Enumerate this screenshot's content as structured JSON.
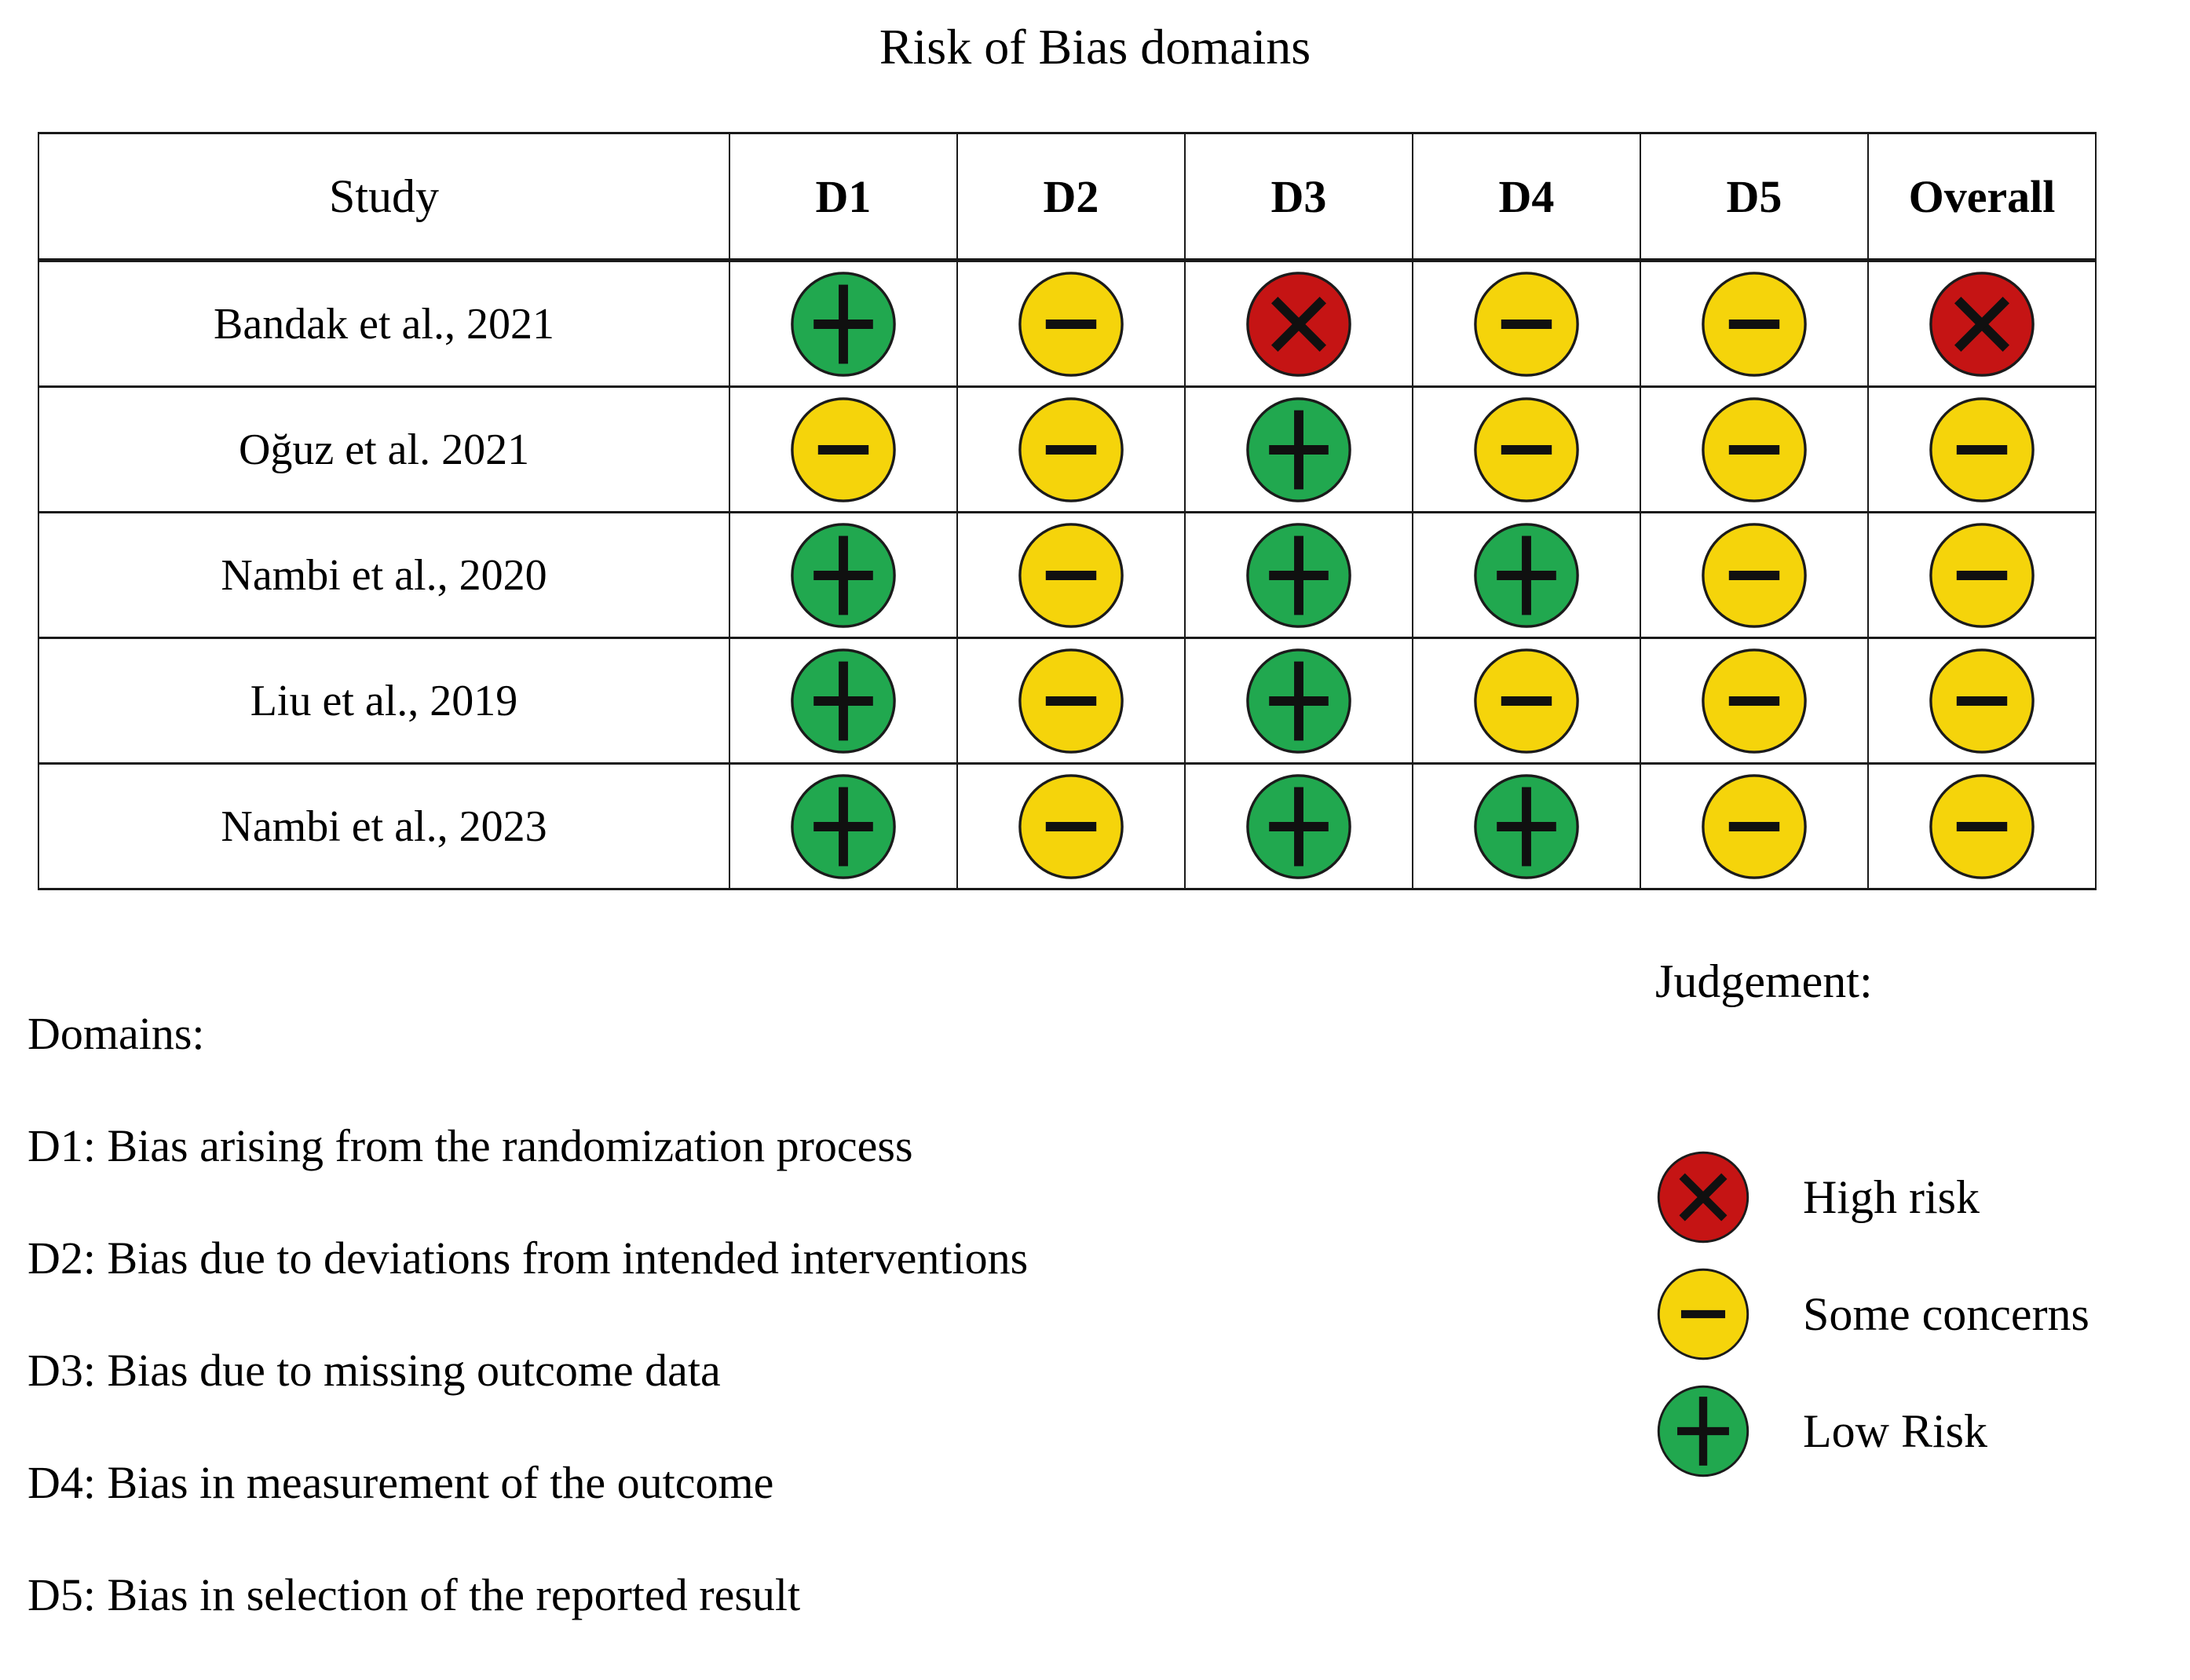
{
  "chart_data": {
    "type": "table",
    "title": "Risk of Bias domains",
    "columns": [
      "Study",
      "D1",
      "D2",
      "D3",
      "D4",
      "D5",
      "Overall"
    ],
    "rows": [
      {
        "study": "Bandak et al., 2021",
        "judgements": [
          "low",
          "some",
          "high",
          "some",
          "some",
          "high"
        ]
      },
      {
        "study": "Oğuz et al. 2021",
        "judgements": [
          "some",
          "some",
          "low",
          "some",
          "some",
          "some"
        ]
      },
      {
        "study": "Nambi et al., 2020",
        "judgements": [
          "low",
          "some",
          "low",
          "low",
          "some",
          "some"
        ]
      },
      {
        "study": "Liu et al., 2019",
        "judgements": [
          "low",
          "some",
          "low",
          "some",
          "some",
          "some"
        ]
      },
      {
        "study": "Nambi et al., 2023",
        "judgements": [
          "low",
          "some",
          "low",
          "low",
          "some",
          "some"
        ]
      }
    ],
    "judgement_colors": {
      "high": "#C51414",
      "some": "#F5D40B",
      "low": "#21A84F"
    },
    "judgement_icons": {
      "high": "x-cross-icon",
      "some": "minus-icon",
      "low": "plus-icon"
    },
    "domains_heading": "Domains:",
    "domains": [
      "D1: Bias arising from the randomization process",
      "D2: Bias due to deviations from intended interventions",
      "D3: Bias due to missing outcome data",
      "D4: Bias in measurement of the outcome",
      "D5: Bias in selection of the reported result"
    ],
    "legend_heading": "Judgement:",
    "legend": [
      {
        "judgement": "high",
        "label": "High risk"
      },
      {
        "judgement": "some",
        "label": "Some concerns"
      },
      {
        "judgement": "low",
        "label": "Low Risk"
      }
    ]
  }
}
